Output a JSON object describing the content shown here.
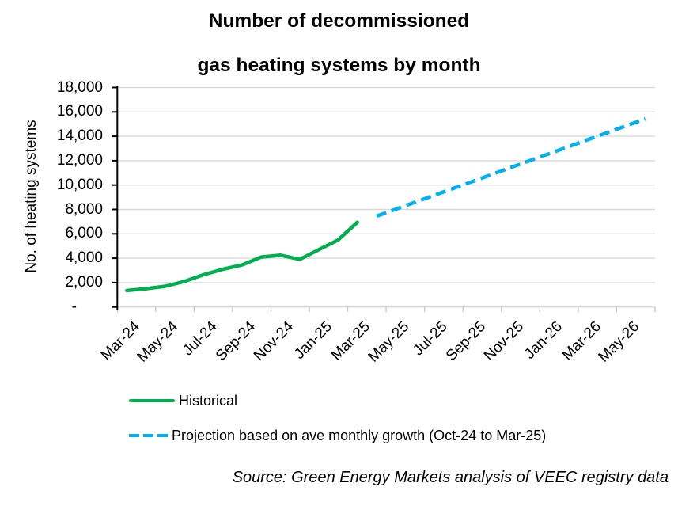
{
  "title": {
    "line1": "Number of decommissioned",
    "line2": "gas heating systems by month"
  },
  "y_axis": {
    "title": "No. of heating systems",
    "tick_labels_top_down": [
      "18,000",
      "16,000",
      "14,000",
      "12,000",
      "10,000",
      "8,000",
      "6,000",
      "4,000",
      "2,000",
      "-"
    ]
  },
  "x_axis": {
    "tick_labels": [
      "Mar-24",
      "May-24",
      "Jul-24",
      "Sep-24",
      "Nov-24",
      "Jan-25",
      "Mar-25",
      "May-25",
      "Jul-25",
      "Sep-25",
      "Nov-25",
      "Jan-26",
      "Mar-26",
      "May-26"
    ]
  },
  "legend": {
    "items": [
      {
        "label": "Historical",
        "style": "solid",
        "color": "#00B050"
      },
      {
        "label": "Projection based on ave monthly growth (Oct-24 to Mar-25)",
        "style": "dashed",
        "color": "#00B0F0"
      }
    ]
  },
  "source_note": "Source: Green Energy Markets analysis of VEEC registry data",
  "colors": {
    "historical": "#00B050",
    "projection": "#00B0F0",
    "gridline": "#D9D9D9",
    "x_tick": "#C9C9C9",
    "axis": "#000000",
    "text": "#000000"
  },
  "chart_data": {
    "type": "line",
    "title": "Number of decommissioned gas heating systems by month",
    "ylabel": "No. of heating systems",
    "xlabel": "",
    "ylim": [
      0,
      18000
    ],
    "y_step": 2000,
    "grid": true,
    "legend_position": "bottom",
    "categories": [
      "Mar-24",
      "Apr-24",
      "May-24",
      "Jun-24",
      "Jul-24",
      "Aug-24",
      "Sep-24",
      "Oct-24",
      "Nov-24",
      "Dec-24",
      "Jan-25",
      "Feb-25",
      "Mar-25",
      "Apr-25",
      "May-25",
      "Jun-25",
      "Jul-25",
      "Aug-25",
      "Sep-25",
      "Oct-25",
      "Nov-25",
      "Dec-25",
      "Jan-26",
      "Feb-26",
      "Mar-26",
      "Apr-26",
      "May-26",
      "Jun-26"
    ],
    "series": [
      {
        "name": "Historical",
        "style": "solid",
        "color": "#00B050",
        "values": [
          1350,
          1500,
          1700,
          2100,
          2650,
          3100,
          3450,
          4100,
          4250,
          3900,
          4700,
          5500,
          6950,
          null,
          null,
          null,
          null,
          null,
          null,
          null,
          null,
          null,
          null,
          null,
          null,
          null,
          null,
          null
        ]
      },
      {
        "name": "Projection based on ave monthly growth (Oct-24 to Mar-25)",
        "style": "dashed",
        "color": "#00B0F0",
        "values": [
          null,
          null,
          null,
          null,
          null,
          null,
          null,
          null,
          null,
          null,
          null,
          null,
          null,
          7450,
          8020,
          8590,
          9160,
          9730,
          10300,
          10870,
          11440,
          12010,
          12580,
          13150,
          13720,
          14290,
          14860,
          15430
        ]
      }
    ]
  }
}
